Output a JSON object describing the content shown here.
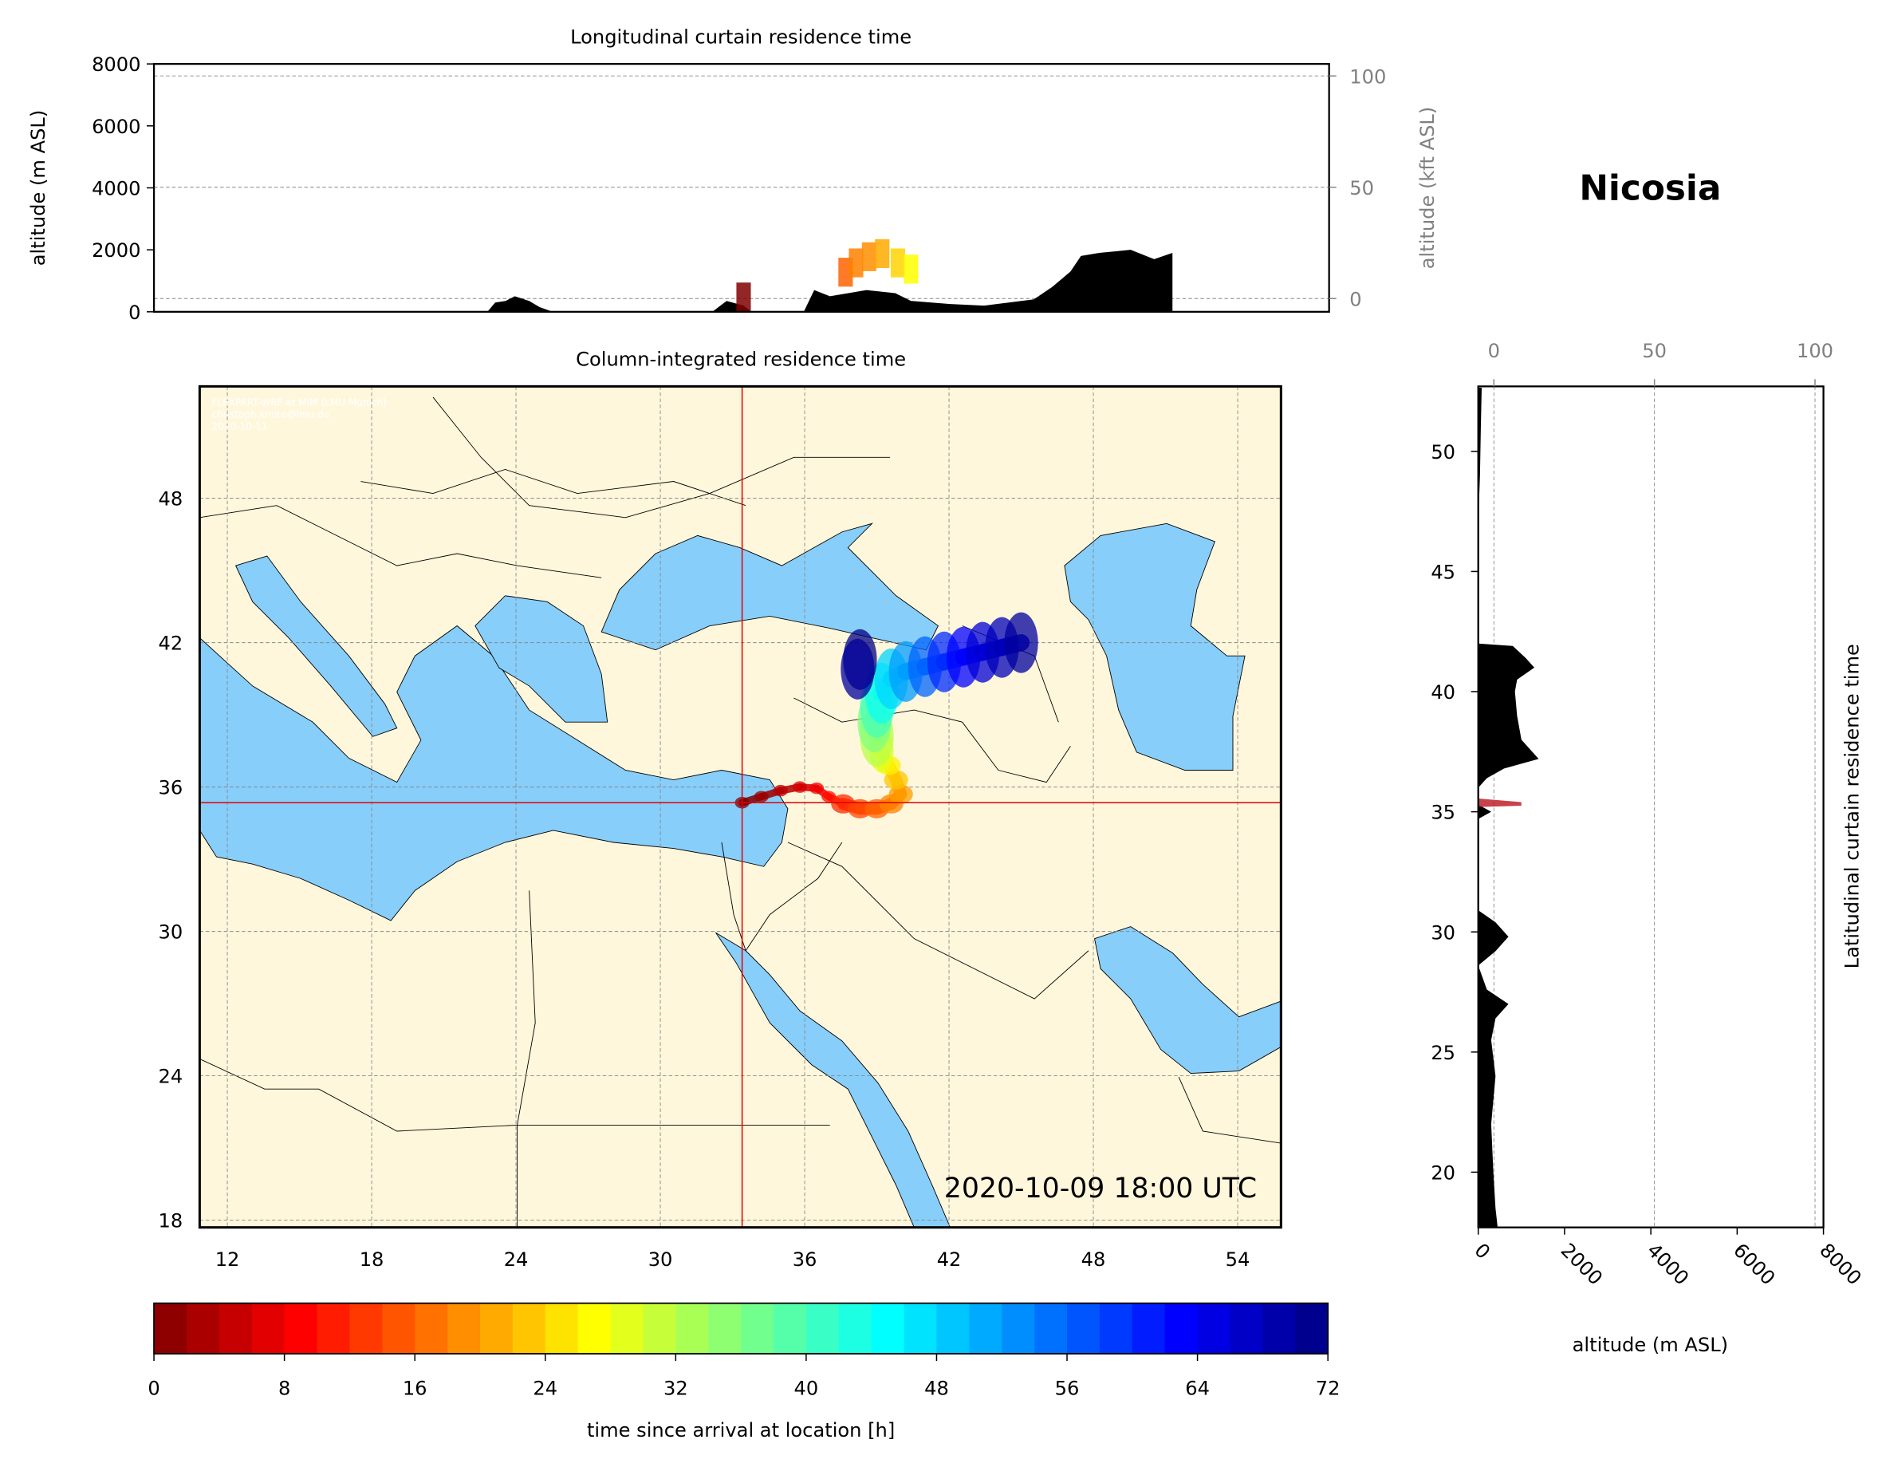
{
  "station_title": "Nicosia",
  "timestamp": "2020-10-09 18:00 UTC",
  "credit": [
    "FLEXPART-WRF at MIM (LMU Munich)",
    "christoph.knote@lmu.de",
    "2020-10-11"
  ],
  "colors": {
    "land": "#fff7dc",
    "sea": "#87cefa",
    "crosshair": "#e00000",
    "terrain": "#000000"
  },
  "chart_data": [
    {
      "type": "area",
      "title": "Longitudinal curtain residence time",
      "ylabel": "altitude (m ASL)",
      "ylabel_right": "altitude (kft ASL)",
      "ylim": [
        0,
        8000
      ],
      "yticks": [
        "0",
        "2000",
        "4000",
        "6000",
        "8000"
      ],
      "yticks_right": [
        "0",
        "50",
        "100"
      ],
      "terrain_lon_alt": [
        [
          23.6,
          0
        ],
        [
          23.9,
          300
        ],
        [
          24.3,
          350
        ],
        [
          24.65,
          500
        ],
        [
          25.2,
          350
        ],
        [
          25.6,
          150
        ],
        [
          26.1,
          0
        ],
        [
          32.2,
          0
        ],
        [
          32.75,
          350
        ],
        [
          33.4,
          200
        ],
        [
          33.7,
          0
        ],
        [
          35.7,
          0
        ],
        [
          36.1,
          700
        ],
        [
          36.7,
          500
        ],
        [
          38.1,
          700
        ],
        [
          39.2,
          600
        ],
        [
          39.8,
          350
        ],
        [
          41.3,
          250
        ],
        [
          42.6,
          200
        ],
        [
          44.5,
          400
        ],
        [
          45.2,
          800
        ],
        [
          45.9,
          1300
        ],
        [
          46.3,
          1800
        ],
        [
          47.0,
          1900
        ],
        [
          48.2,
          2000
        ],
        [
          49.1,
          1700
        ],
        [
          49.8,
          1900
        ],
        [
          49.8,
          0
        ]
      ],
      "plume_lon_alt_hours": [
        [
          33.4,
          400,
          0
        ],
        [
          37.3,
          1200,
          16
        ],
        [
          37.7,
          1500,
          18
        ],
        [
          38.2,
          1700,
          19
        ],
        [
          38.7,
          1800,
          21
        ],
        [
          39.3,
          1500,
          24
        ],
        [
          39.8,
          1300,
          27
        ]
      ]
    },
    {
      "type": "scatter",
      "title": "Column-integrated residence time",
      "xticks": [
        "12",
        "18",
        "24",
        "30",
        "36",
        "42",
        "48",
        "54"
      ],
      "yticks": [
        "18",
        "24",
        "30",
        "36",
        "42",
        "48"
      ],
      "xlim": [
        10.85,
        55.8
      ],
      "ylim": [
        17.7,
        52.65
      ],
      "receptor": {
        "lon": 33.4,
        "lat": 35.35
      },
      "plume_lon_lat_hours": [
        [
          33.4,
          35.35,
          0
        ],
        [
          34.2,
          35.6,
          2
        ],
        [
          35,
          35.85,
          4
        ],
        [
          35.8,
          36.0,
          6
        ],
        [
          36.5,
          35.95,
          8
        ],
        [
          37,
          35.6,
          10
        ],
        [
          37.6,
          35.3,
          12
        ],
        [
          38.3,
          35.1,
          14
        ],
        [
          39,
          35.1,
          16
        ],
        [
          39.6,
          35.3,
          18
        ],
        [
          40,
          35.7,
          20
        ],
        [
          39.8,
          36.3,
          23
        ],
        [
          39.5,
          36.9,
          26
        ],
        [
          39.2,
          37.5,
          29
        ],
        [
          39,
          38.1,
          32
        ],
        [
          38.9,
          38.7,
          36
        ],
        [
          39.0,
          39.3,
          40
        ],
        [
          39.2,
          39.9,
          44
        ],
        [
          39.6,
          40.5,
          48
        ],
        [
          40.2,
          40.8,
          52
        ],
        [
          41,
          41.0,
          56
        ],
        [
          41.8,
          41.2,
          60
        ],
        [
          42.6,
          41.4,
          63
        ],
        [
          43.4,
          41.6,
          66
        ],
        [
          44.2,
          41.8,
          68
        ],
        [
          45,
          42.0,
          70
        ],
        [
          38.3,
          41.3,
          72
        ],
        [
          38.2,
          40.9,
          70
        ]
      ]
    },
    {
      "type": "area",
      "title": "Latitudinal curtain residence time",
      "xlabel": "altitude (m ASL)",
      "xticks": [
        "0",
        "2000",
        "4000",
        "6000",
        "8000"
      ],
      "xticks_top": [
        "0",
        "50",
        "100"
      ],
      "yticks": [
        "20",
        "25",
        "30",
        "35",
        "40",
        "45",
        "50"
      ],
      "terrain_lat_alt": [
        [
          52.65,
          0
        ],
        [
          52.65,
          80
        ],
        [
          51,
          60
        ],
        [
          49,
          40
        ],
        [
          47,
          0
        ],
        [
          42,
          0
        ],
        [
          41.9,
          800
        ],
        [
          41.4,
          1100
        ],
        [
          41,
          1300
        ],
        [
          40.5,
          900
        ],
        [
          40,
          850
        ],
        [
          39,
          900
        ],
        [
          38,
          1000
        ],
        [
          37.2,
          1400
        ],
        [
          36.8,
          600
        ],
        [
          36.4,
          200
        ],
        [
          36,
          0
        ],
        [
          35.3,
          0
        ],
        [
          35.0,
          300
        ],
        [
          34.7,
          0
        ],
        [
          30.9,
          0
        ],
        [
          30.4,
          400
        ],
        [
          29.8,
          700
        ],
        [
          29.2,
          400
        ],
        [
          28.6,
          0
        ],
        [
          27.6,
          200
        ],
        [
          27,
          700
        ],
        [
          26.4,
          400
        ],
        [
          25.5,
          300
        ],
        [
          24,
          400
        ],
        [
          22,
          300
        ],
        [
          20,
          350
        ],
        [
          18.5,
          400
        ],
        [
          17.7,
          450
        ],
        [
          17.7,
          0
        ]
      ],
      "plume_lat_alt_hours": [
        [
          35.4,
          0,
          0
        ],
        [
          35.4,
          1000,
          2
        ]
      ]
    }
  ],
  "colorbar": {
    "label": "time since arrival at location [h]",
    "range": [
      0,
      72
    ],
    "ticks": [
      "0",
      "8",
      "16",
      "24",
      "32",
      "40",
      "48",
      "56",
      "64",
      "72"
    ]
  }
}
